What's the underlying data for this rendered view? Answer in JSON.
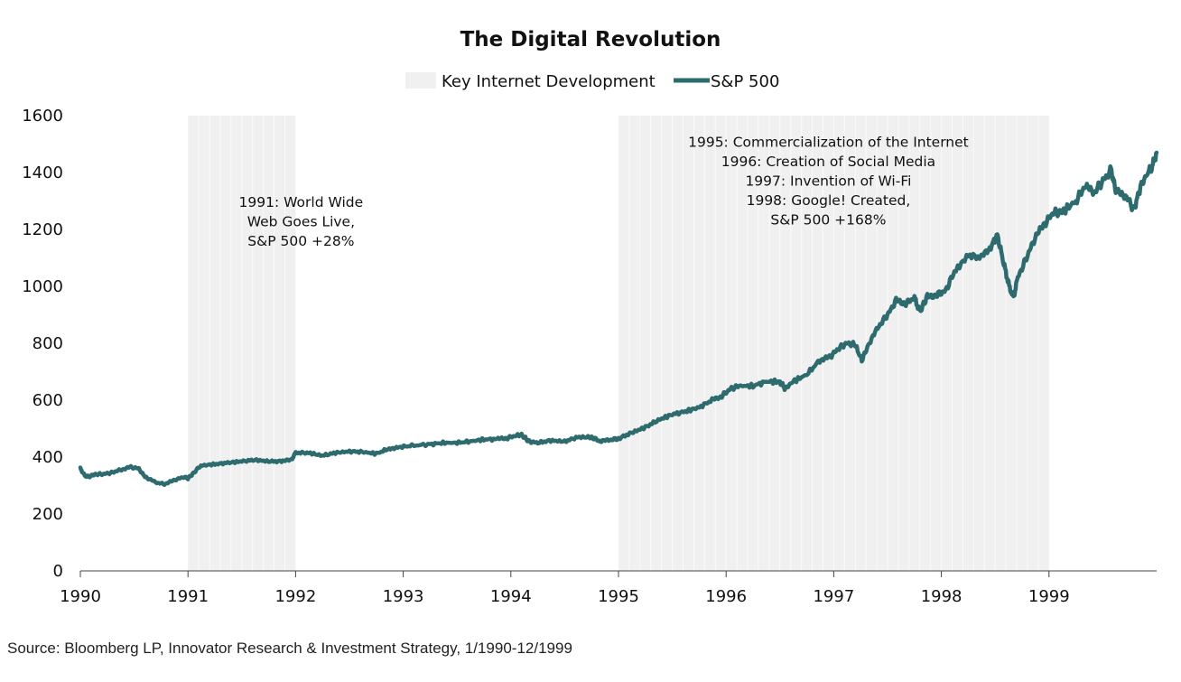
{
  "chart_data": {
    "type": "line",
    "title": "The Digital Revolution",
    "legend": {
      "placement": "top-center",
      "entries": [
        {
          "label": "Key Internet Development",
          "kind": "shaded-band",
          "color": "#f0f0f0"
        },
        {
          "label": "S&P 500",
          "kind": "line",
          "color": "#2e6b6e"
        }
      ]
    },
    "x_axis": {
      "range": [
        1990,
        2000
      ],
      "tick_labels": [
        "1990",
        "1991",
        "1992",
        "1993",
        "1994",
        "1995",
        "1996",
        "1997",
        "1998",
        "1999"
      ]
    },
    "y_axis": {
      "range": [
        0,
        1600
      ],
      "tick_labels": [
        "0",
        "200",
        "400",
        "600",
        "800",
        "1000",
        "1200",
        "1400",
        "1600"
      ],
      "grid": false
    },
    "shaded_periods": [
      {
        "start": 1991,
        "end": 1992
      },
      {
        "start": 1995,
        "end": 1999
      }
    ],
    "annotations": [
      {
        "lines": [
          "1991: World Wide",
          "Web Goes Live,",
          "S&P 500 +28%"
        ],
        "x": 1992.05,
        "y": 1280
      },
      {
        "lines": [
          "1995: Commercialization of the Internet",
          "1996: Creation of Social Media",
          "1997: Invention of Wi-Fi",
          "1998: Google! Created,",
          "S&P 500 +168%"
        ],
        "x": 1996.95,
        "y": 1490
      }
    ],
    "series": [
      {
        "name": "S&P 500",
        "color": "#2e6b6e",
        "points": [
          [
            1990.0,
            360
          ],
          [
            1990.04,
            335
          ],
          [
            1990.08,
            330
          ],
          [
            1990.13,
            340
          ],
          [
            1990.21,
            340
          ],
          [
            1990.29,
            345
          ],
          [
            1990.37,
            355
          ],
          [
            1990.46,
            365
          ],
          [
            1990.54,
            360
          ],
          [
            1990.58,
            340
          ],
          [
            1990.62,
            325
          ],
          [
            1990.71,
            310
          ],
          [
            1990.79,
            305
          ],
          [
            1990.88,
            320
          ],
          [
            1990.96,
            330
          ],
          [
            1991.0,
            325
          ],
          [
            1991.04,
            340
          ],
          [
            1991.12,
            370
          ],
          [
            1991.25,
            375
          ],
          [
            1991.37,
            380
          ],
          [
            1991.5,
            385
          ],
          [
            1991.62,
            390
          ],
          [
            1991.75,
            385
          ],
          [
            1991.87,
            385
          ],
          [
            1991.96,
            390
          ],
          [
            1992.0,
            415
          ],
          [
            1992.12,
            415
          ],
          [
            1992.25,
            405
          ],
          [
            1992.37,
            415
          ],
          [
            1992.5,
            420
          ],
          [
            1992.62,
            418
          ],
          [
            1992.75,
            412
          ],
          [
            1992.87,
            430
          ],
          [
            1992.96,
            435
          ],
          [
            1993.08,
            440
          ],
          [
            1993.25,
            445
          ],
          [
            1993.37,
            450
          ],
          [
            1993.5,
            450
          ],
          [
            1993.62,
            455
          ],
          [
            1993.75,
            462
          ],
          [
            1993.87,
            463
          ],
          [
            1993.96,
            466
          ],
          [
            1994.04,
            475
          ],
          [
            1994.1,
            478
          ],
          [
            1994.17,
            455
          ],
          [
            1994.25,
            450
          ],
          [
            1994.37,
            458
          ],
          [
            1994.5,
            455
          ],
          [
            1994.62,
            470
          ],
          [
            1994.75,
            470
          ],
          [
            1994.83,
            455
          ],
          [
            1994.92,
            460
          ],
          [
            1995.0,
            465
          ],
          [
            1995.12,
            485
          ],
          [
            1995.25,
            505
          ],
          [
            1995.37,
            530
          ],
          [
            1995.5,
            550
          ],
          [
            1995.62,
            560
          ],
          [
            1995.75,
            575
          ],
          [
            1995.87,
            600
          ],
          [
            1995.96,
            615
          ],
          [
            1996.04,
            640
          ],
          [
            1996.12,
            650
          ],
          [
            1996.25,
            650
          ],
          [
            1996.37,
            665
          ],
          [
            1996.5,
            665
          ],
          [
            1996.55,
            640
          ],
          [
            1996.62,
            665
          ],
          [
            1996.75,
            690
          ],
          [
            1996.87,
            740
          ],
          [
            1996.96,
            750
          ],
          [
            1997.04,
            780
          ],
          [
            1997.12,
            800
          ],
          [
            1997.2,
            795
          ],
          [
            1997.26,
            740
          ],
          [
            1997.33,
            800
          ],
          [
            1997.42,
            860
          ],
          [
            1997.5,
            900
          ],
          [
            1997.58,
            950
          ],
          [
            1997.67,
            940
          ],
          [
            1997.75,
            960
          ],
          [
            1997.8,
            910
          ],
          [
            1997.87,
            965
          ],
          [
            1997.96,
            970
          ],
          [
            1998.04,
            985
          ],
          [
            1998.12,
            1050
          ],
          [
            1998.25,
            1110
          ],
          [
            1998.37,
            1100
          ],
          [
            1998.46,
            1140
          ],
          [
            1998.52,
            1180
          ],
          [
            1998.58,
            1080
          ],
          [
            1998.63,
            1000
          ],
          [
            1998.67,
            960
          ],
          [
            1998.71,
            1030
          ],
          [
            1998.79,
            1100
          ],
          [
            1998.87,
            1170
          ],
          [
            1998.96,
            1220
          ],
          [
            1999.04,
            1260
          ],
          [
            1999.12,
            1260
          ],
          [
            1999.25,
            1300
          ],
          [
            1999.33,
            1350
          ],
          [
            1999.42,
            1330
          ],
          [
            1999.5,
            1370
          ],
          [
            1999.58,
            1410
          ],
          [
            1999.62,
            1330
          ],
          [
            1999.71,
            1320
          ],
          [
            1999.79,
            1270
          ],
          [
            1999.85,
            1350
          ],
          [
            1999.92,
            1400
          ],
          [
            1999.96,
            1420
          ],
          [
            2000.0,
            1470
          ]
        ]
      }
    ]
  },
  "source_text": "Source: Bloomberg LP, Innovator Research & Investment Strategy, 1/1990-12/1999"
}
